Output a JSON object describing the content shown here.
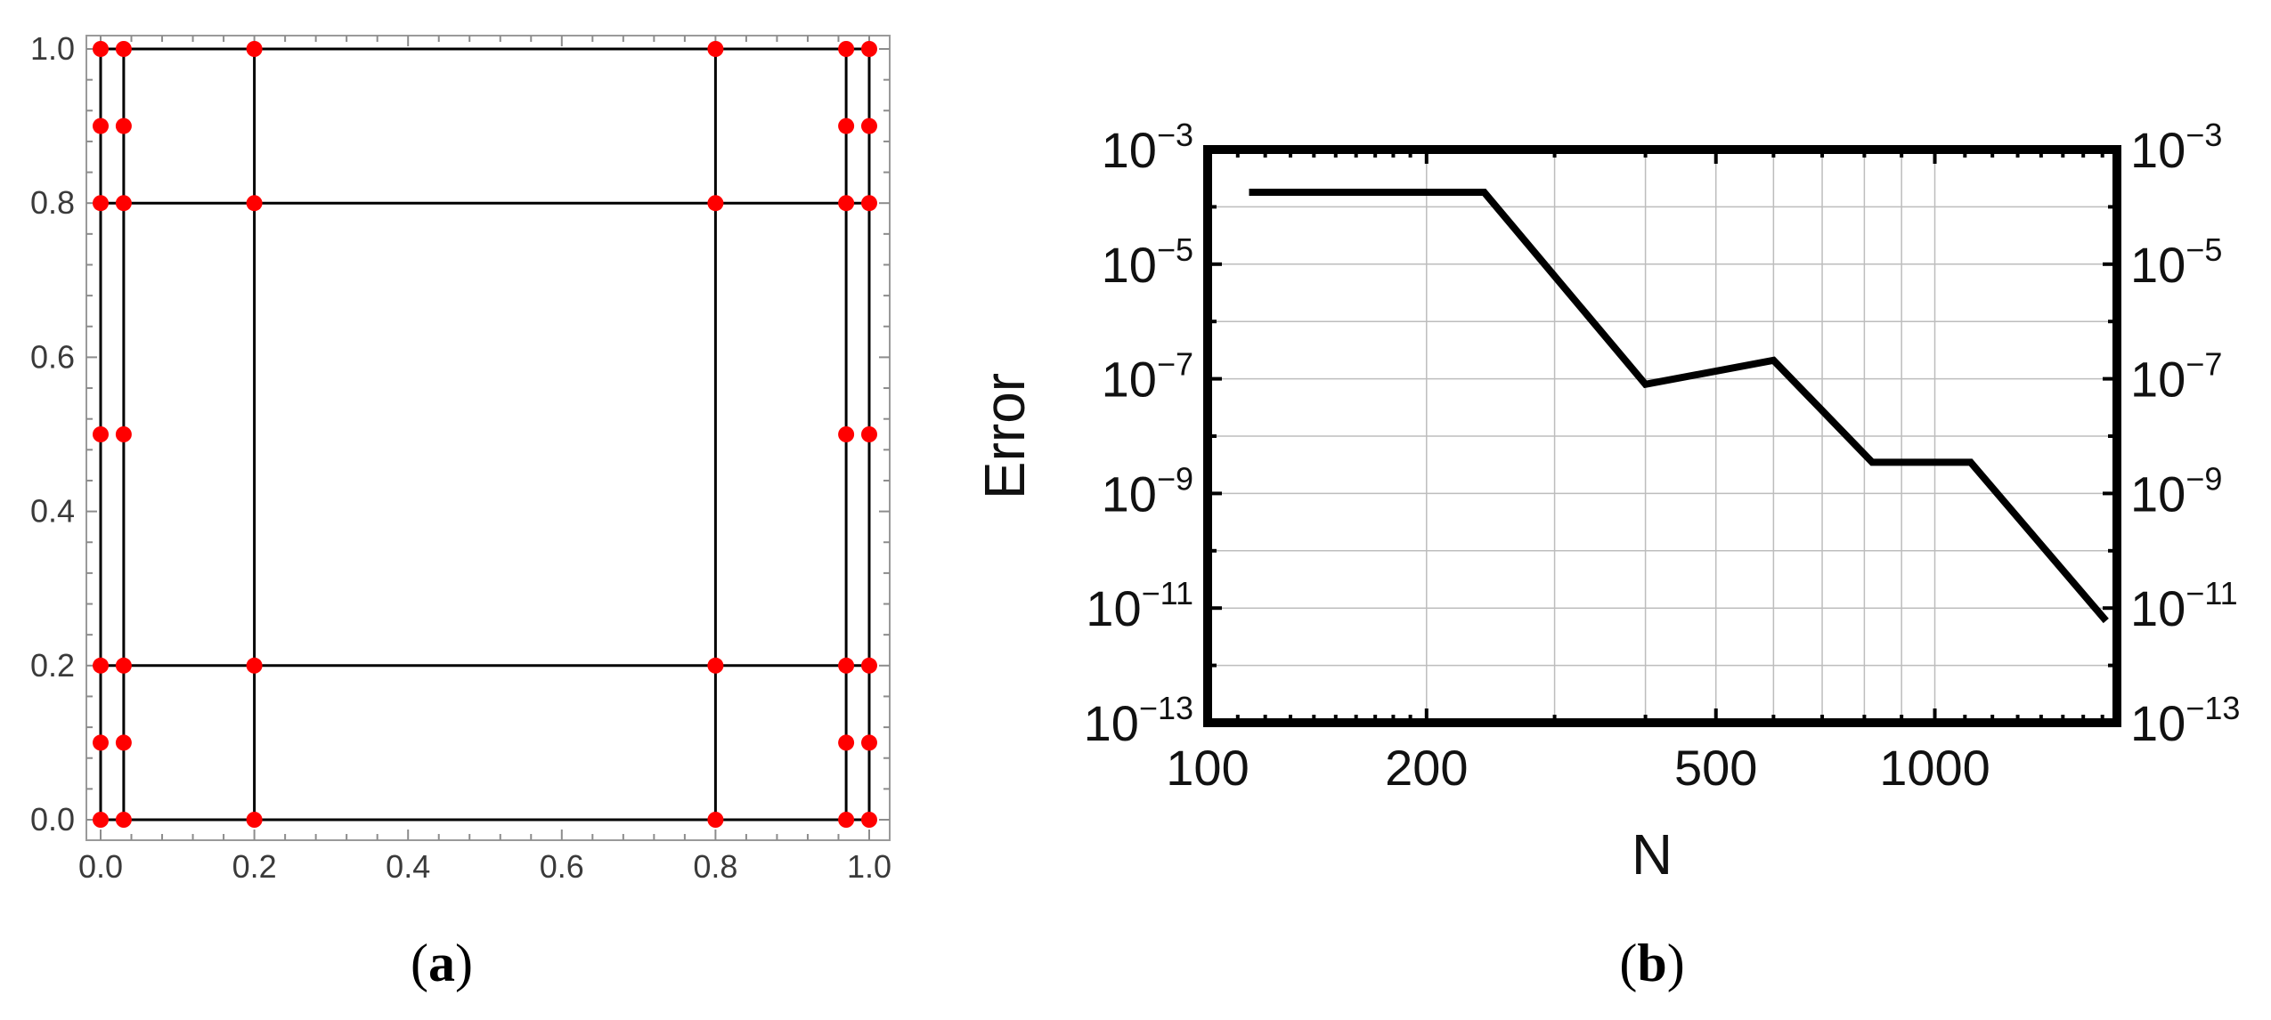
{
  "panels": {
    "a": {
      "label_open": "(",
      "label_letter": "a",
      "label_close": ")"
    },
    "b": {
      "label_open": "(",
      "label_letter": "b",
      "label_close": ")"
    }
  },
  "chart_data": [
    {
      "type": "scatter",
      "title": "",
      "xlabel": "",
      "ylabel": "",
      "xlim": [
        0,
        1
      ],
      "ylim": [
        0,
        1
      ],
      "grid": false,
      "x_ticks": [
        "0.0",
        "0.2",
        "0.4",
        "0.6",
        "0.8",
        "1.0"
      ],
      "y_ticks": [
        "0.0",
        "0.2",
        "0.4",
        "0.6",
        "0.8",
        "1.0"
      ],
      "vertical_lines_x": [
        0.0,
        0.03,
        0.2,
        0.8,
        0.97,
        1.0
      ],
      "horizontal_lines_y": [
        0.0,
        0.2,
        0.8,
        1.0
      ],
      "point_x": [
        0.0,
        0.03,
        0.97,
        1.0
      ],
      "point_x_sparse": [
        0.2,
        0.8
      ],
      "point_y": [
        0.0,
        0.1,
        0.2,
        0.5,
        0.8,
        0.9,
        1.0
      ],
      "point_y_sparse": [
        0.0,
        0.2,
        0.8,
        1.0
      ],
      "line_color": "#000000",
      "point_color": "#ff0000"
    },
    {
      "type": "line",
      "title": "",
      "xlabel": "N",
      "ylabel": "Error",
      "x_scale": "log",
      "y_scale": "log",
      "xlim": [
        100,
        1780
      ],
      "ylim": [
        1e-13,
        0.001
      ],
      "grid": true,
      "x_ticks": [
        {
          "value": 100,
          "label": "100"
        },
        {
          "value": 200,
          "label": "200"
        },
        {
          "value": 500,
          "label": "500"
        },
        {
          "value": 1000,
          "label": "1000"
        }
      ],
      "y_ticks": [
        {
          "value": 1e-13,
          "base": "10",
          "exp": "−13"
        },
        {
          "value": 1e-11,
          "base": "10",
          "exp": "−11"
        },
        {
          "value": 1e-09,
          "base": "10",
          "exp": "−9"
        },
        {
          "value": 1e-07,
          "base": "10",
          "exp": "−7"
        },
        {
          "value": 1e-05,
          "base": "10",
          "exp": "−5"
        },
        {
          "value": 0.001,
          "base": "10",
          "exp": "−3"
        }
      ],
      "series": [
        {
          "x": [
            114,
            240,
            400,
            600,
            820,
            1120,
            1720
          ],
          "y": [
            0.00018,
            0.00018,
            8e-08,
            2.1e-07,
            3.5e-09,
            3.5e-09,
            6e-12
          ],
          "color": "#000000"
        }
      ]
    }
  ]
}
